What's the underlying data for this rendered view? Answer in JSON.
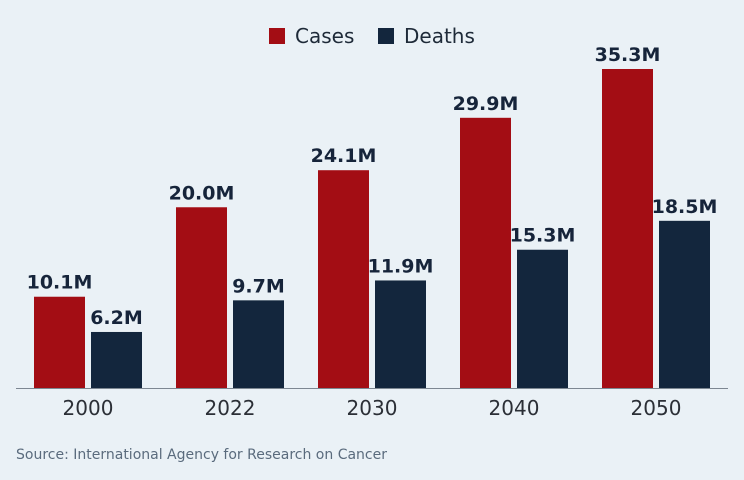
{
  "chart_data": {
    "type": "bar",
    "categories": [
      "2000",
      "2022",
      "2030",
      "2040",
      "2050"
    ],
    "series": [
      {
        "name": "Cases",
        "color": "#a30d14",
        "values": [
          10.1,
          20.0,
          24.1,
          29.9,
          35.3
        ],
        "labels": [
          "10.1M",
          "20.0M",
          "24.1M",
          "29.9M",
          "35.3M"
        ]
      },
      {
        "name": "Deaths",
        "color": "#13263d",
        "values": [
          6.2,
          9.7,
          11.9,
          15.3,
          18.5
        ],
        "labels": [
          "6.2M",
          "9.7M",
          "11.9M",
          "15.3M",
          "18.5M"
        ]
      }
    ],
    "ylim": [
      0,
      35.3
    ],
    "grid": false,
    "legend_position": "top-center"
  },
  "source": "Source: International Agency for Research on Cancer",
  "colors": {
    "background": "#eaf1f6",
    "axis": "#7d8792"
  }
}
